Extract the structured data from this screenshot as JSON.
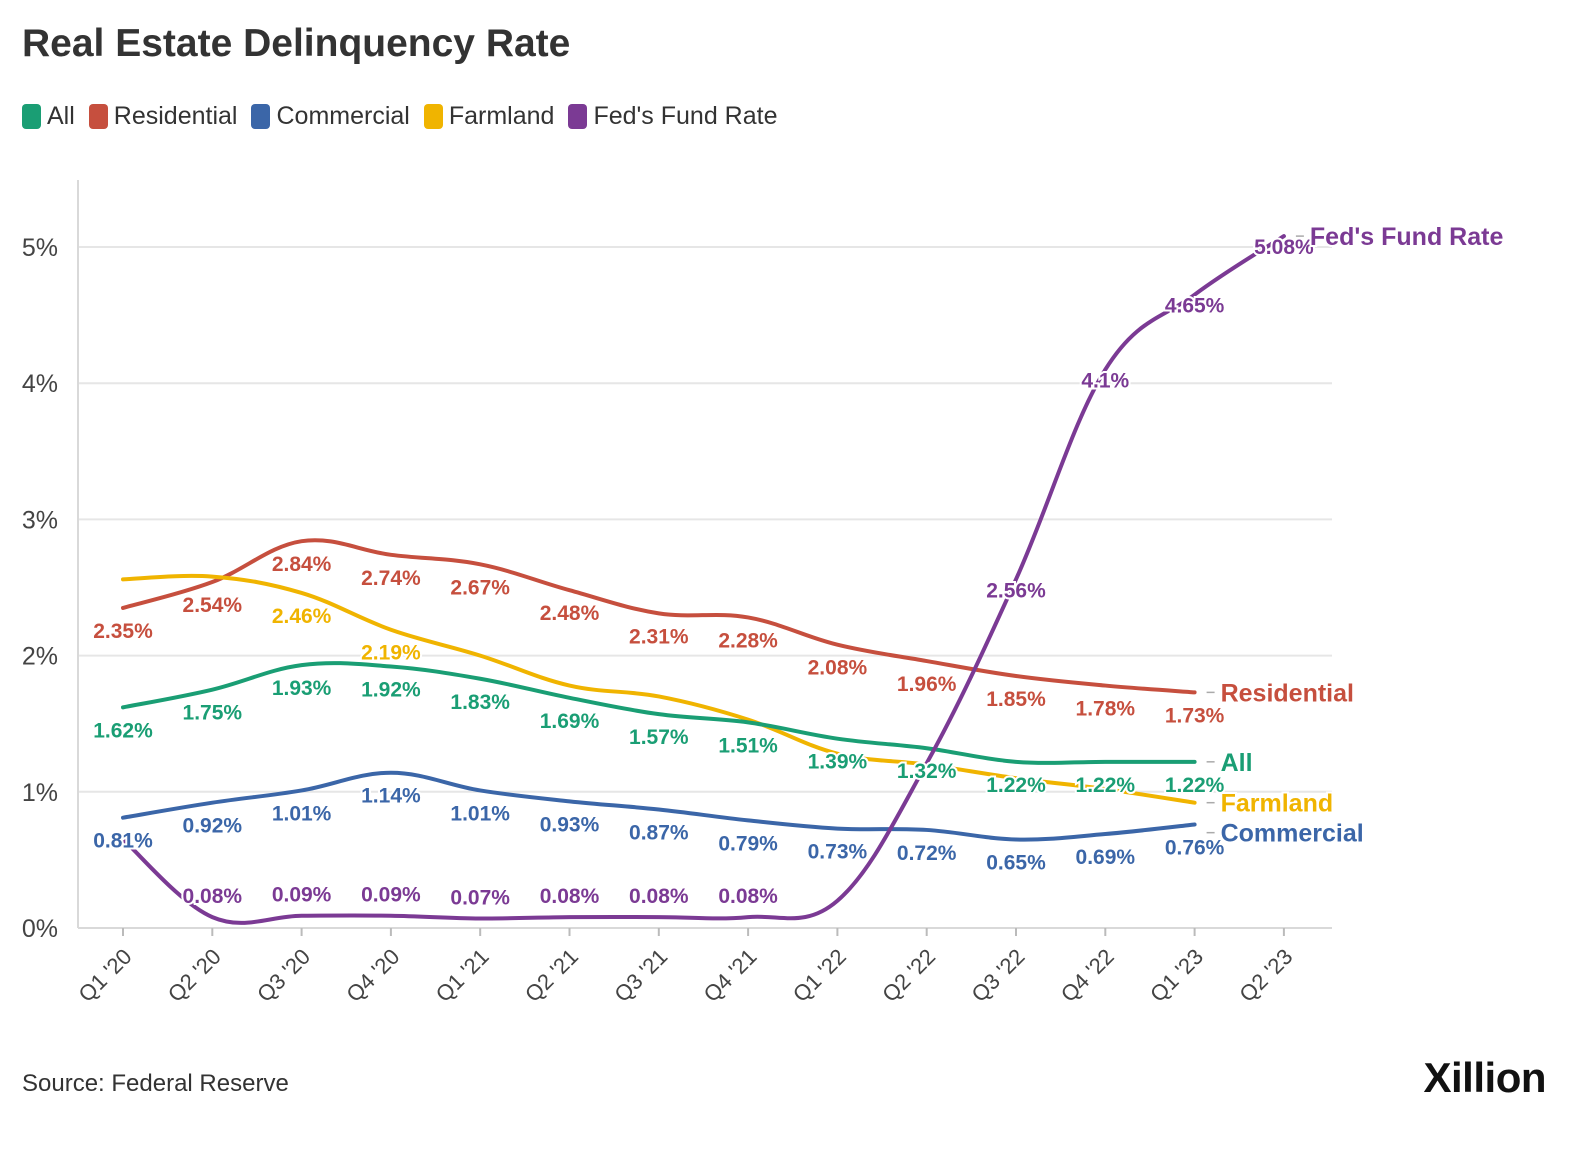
{
  "title": "Real Estate Delinquency Rate",
  "source": "Source: Federal Reserve",
  "brand": "Xillion",
  "colors": {
    "all": "#1a9e74",
    "residential": "#c64f3e",
    "commercial": "#3b66a8",
    "farmland": "#f0b400",
    "fed": "#7b3a94",
    "grid": "#e6e6e6",
    "axis_text": "#444444"
  },
  "legend": [
    {
      "label": "All",
      "color": "#1a9e74"
    },
    {
      "label": "Residential",
      "color": "#c64f3e"
    },
    {
      "label": "Commercial",
      "color": "#3b66a8"
    },
    {
      "label": "Farmland",
      "color": "#f0b400"
    },
    {
      "label": "Fed's Fund Rate",
      "color": "#7b3a94"
    }
  ],
  "chart_data": {
    "type": "line",
    "title": "Real Estate Delinquency Rate",
    "categories": [
      "Q1 '20",
      "Q2 '20",
      "Q3 '20",
      "Q4 '20",
      "Q1 '21",
      "Q2 '21",
      "Q3 '21",
      "Q4 '21",
      "Q1 '22",
      "Q2 '22",
      "Q3 '22",
      "Q4 '22",
      "Q1 '23",
      "Q2 '23"
    ],
    "y_ticks": [
      "0%",
      "1%",
      "2%",
      "3%",
      "4%",
      "5%"
    ],
    "ylim": [
      0,
      5.5
    ],
    "grid": true,
    "legend_position": "top-left",
    "series": [
      {
        "name": "All",
        "color": "#1a9e74",
        "values": [
          1.62,
          1.75,
          1.93,
          1.92,
          1.83,
          1.69,
          1.57,
          1.51,
          1.39,
          1.32,
          1.22,
          1.22,
          1.22,
          null
        ],
        "labels": [
          "1.62%",
          "1.75%",
          "1.93%",
          "1.92%",
          "1.83%",
          "1.69%",
          "1.57%",
          "1.51%",
          "1.39%",
          "1.32%",
          "1.22%",
          "1.22%",
          "1.22%",
          null
        ],
        "end_label": "All"
      },
      {
        "name": "Residential",
        "color": "#c64f3e",
        "values": [
          2.35,
          2.54,
          2.84,
          2.74,
          2.67,
          2.48,
          2.31,
          2.28,
          2.08,
          1.96,
          1.85,
          1.78,
          1.73,
          null
        ],
        "labels": [
          "2.35%",
          "2.54%",
          "2.84%",
          "2.74%",
          "2.67%",
          "2.48%",
          "2.31%",
          "2.28%",
          "2.08%",
          "1.96%",
          "1.85%",
          "1.78%",
          "1.73%",
          null
        ],
        "end_label": "Residential"
      },
      {
        "name": "Commercial",
        "color": "#3b66a8",
        "values": [
          0.81,
          0.92,
          1.01,
          1.14,
          1.01,
          0.93,
          0.87,
          0.79,
          0.73,
          0.72,
          0.65,
          0.69,
          0.76,
          null
        ],
        "labels": [
          "0.81%",
          "0.92%",
          "1.01%",
          "1.14%",
          "1.01%",
          "0.93%",
          "0.87%",
          "0.79%",
          "0.73%",
          "0.72%",
          "0.65%",
          "0.69%",
          "0.76%",
          null
        ],
        "end_label": "Commercial"
      },
      {
        "name": "Farmland",
        "color": "#f0b400",
        "values": [
          2.56,
          2.58,
          2.46,
          2.19,
          2.0,
          1.78,
          1.7,
          1.53,
          1.28,
          1.2,
          1.1,
          1.02,
          0.92,
          null
        ],
        "labels": [
          null,
          null,
          "2.46%",
          "2.19%",
          null,
          null,
          null,
          null,
          null,
          null,
          null,
          null,
          null,
          null
        ],
        "end_label": "Farmland"
      },
      {
        "name": "Fed's Fund Rate",
        "color": "#7b3a94",
        "values": [
          0.65,
          0.08,
          0.09,
          0.09,
          0.07,
          0.08,
          0.08,
          0.08,
          0.2,
          1.21,
          2.56,
          4.1,
          4.65,
          5.08
        ],
        "labels": [
          null,
          "0.08%",
          "0.09%",
          "0.09%",
          "0.07%",
          "0.08%",
          "0.08%",
          "0.08%",
          null,
          null,
          "2.56%",
          "4.1%",
          "4.65%",
          "5.08%"
        ],
        "end_label": "Fed's Fund Rate"
      }
    ]
  }
}
